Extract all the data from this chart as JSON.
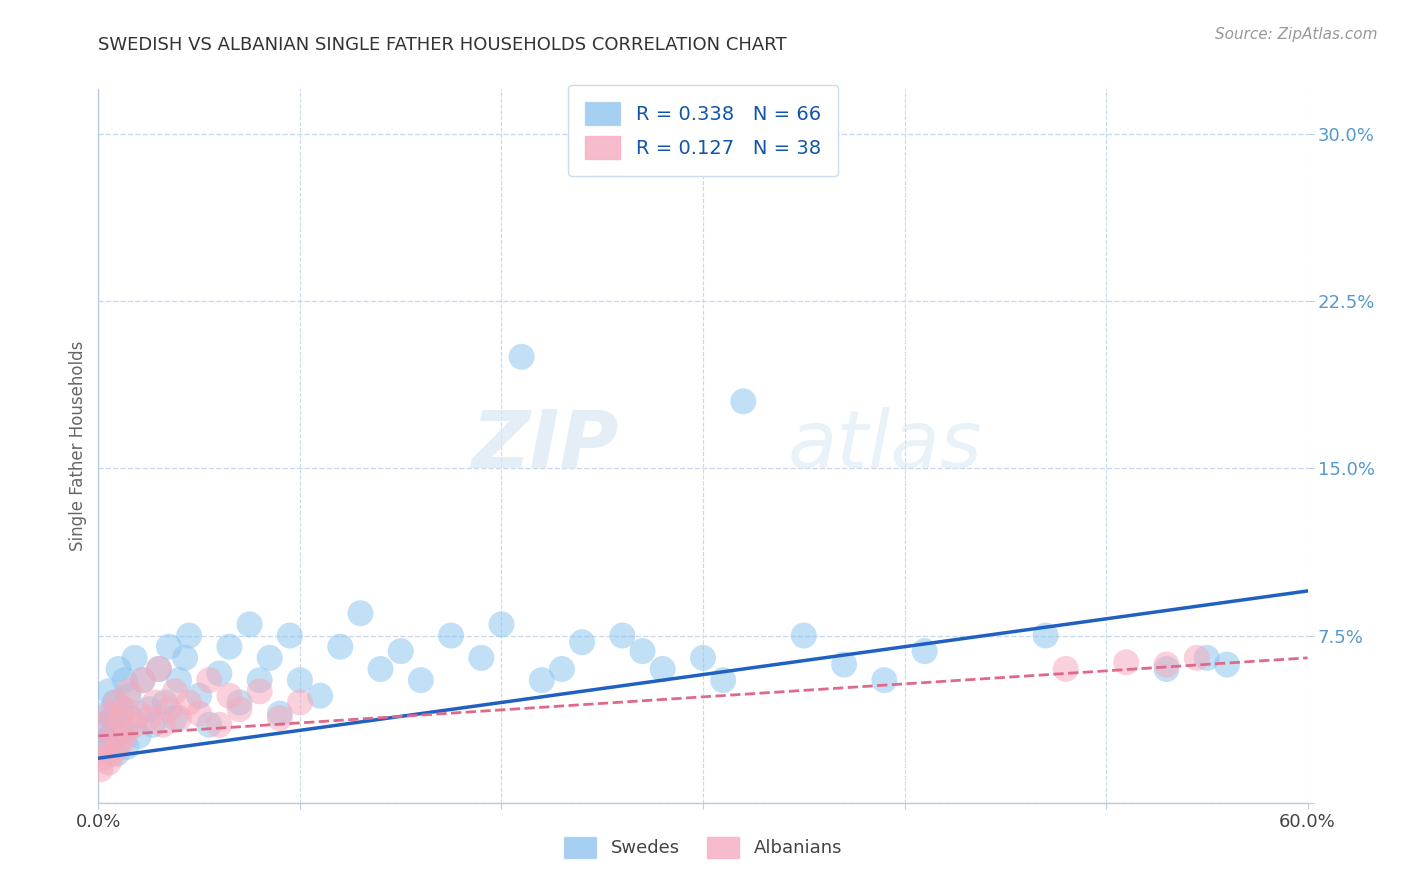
{
  "title": "SWEDISH VS ALBANIAN SINGLE FATHER HOUSEHOLDS CORRELATION CHART",
  "source": "Source: ZipAtlas.com",
  "ylabel": "Single Father Households",
  "xlim": [
    0.0,
    0.6
  ],
  "ylim": [
    0.0,
    0.32
  ],
  "xticks": [
    0.0,
    0.1,
    0.2,
    0.3,
    0.4,
    0.5,
    0.6
  ],
  "xticklabels": [
    "0.0%",
    "",
    "",
    "",
    "",
    "",
    "60.0%"
  ],
  "yticks": [
    0.0,
    0.075,
    0.15,
    0.225,
    0.3
  ],
  "yticklabels": [
    "",
    "7.5%",
    "15.0%",
    "22.5%",
    "30.0%"
  ],
  "swedish_R": 0.338,
  "swedish_N": 66,
  "albanian_R": 0.127,
  "albanian_N": 38,
  "swedish_color": "#8FC5EE",
  "albanian_color": "#F5ABBE",
  "swedish_line_color": "#2060C0",
  "albanian_line_color": "#E06888",
  "grid_color": "#C8D8EE",
  "background_color": "#FFFFFF",
  "watermark_zip": "ZIP",
  "watermark_atlas": "atlas",
  "legend_label_swedish": "Swedes",
  "legend_label_albanian": "Albanians",
  "sw_x": [
    0.002,
    0.003,
    0.004,
    0.005,
    0.005,
    0.006,
    0.007,
    0.008,
    0.009,
    0.01,
    0.011,
    0.012,
    0.013,
    0.014,
    0.015,
    0.016,
    0.018,
    0.02,
    0.022,
    0.025,
    0.027,
    0.03,
    0.033,
    0.035,
    0.038,
    0.04,
    0.043,
    0.045,
    0.05,
    0.055,
    0.06,
    0.065,
    0.07,
    0.075,
    0.08,
    0.085,
    0.09,
    0.095,
    0.1,
    0.11,
    0.12,
    0.13,
    0.14,
    0.15,
    0.16,
    0.175,
    0.19,
    0.2,
    0.21,
    0.22,
    0.23,
    0.24,
    0.26,
    0.27,
    0.28,
    0.3,
    0.31,
    0.32,
    0.35,
    0.37,
    0.39,
    0.41,
    0.47,
    0.53,
    0.55,
    0.56
  ],
  "sw_y": [
    0.035,
    0.028,
    0.04,
    0.025,
    0.05,
    0.03,
    0.038,
    0.045,
    0.022,
    0.06,
    0.032,
    0.042,
    0.055,
    0.025,
    0.048,
    0.038,
    0.065,
    0.03,
    0.055,
    0.042,
    0.035,
    0.06,
    0.045,
    0.07,
    0.038,
    0.055,
    0.065,
    0.075,
    0.048,
    0.035,
    0.058,
    0.07,
    0.045,
    0.08,
    0.055,
    0.065,
    0.04,
    0.075,
    0.055,
    0.048,
    0.07,
    0.085,
    0.06,
    0.068,
    0.055,
    0.075,
    0.065,
    0.08,
    0.2,
    0.055,
    0.06,
    0.072,
    0.075,
    0.068,
    0.06,
    0.065,
    0.055,
    0.18,
    0.075,
    0.062,
    0.055,
    0.068,
    0.075,
    0.06,
    0.065,
    0.062
  ],
  "al_x": [
    0.001,
    0.002,
    0.003,
    0.004,
    0.005,
    0.006,
    0.007,
    0.008,
    0.009,
    0.01,
    0.011,
    0.012,
    0.013,
    0.014,
    0.015,
    0.018,
    0.02,
    0.022,
    0.025,
    0.028,
    0.03,
    0.032,
    0.035,
    0.038,
    0.04,
    0.045,
    0.05,
    0.055,
    0.06,
    0.065,
    0.07,
    0.08,
    0.09,
    0.1,
    0.48,
    0.51,
    0.53,
    0.545
  ],
  "al_y": [
    0.015,
    0.025,
    0.02,
    0.035,
    0.018,
    0.04,
    0.022,
    0.03,
    0.045,
    0.025,
    0.038,
    0.028,
    0.042,
    0.032,
    0.05,
    0.035,
    0.04,
    0.055,
    0.038,
    0.045,
    0.06,
    0.035,
    0.042,
    0.05,
    0.038,
    0.045,
    0.04,
    0.055,
    0.035,
    0.048,
    0.042,
    0.05,
    0.038,
    0.045,
    0.06,
    0.063,
    0.062,
    0.065
  ],
  "sw_line_x": [
    0.0,
    0.6
  ],
  "sw_line_y": [
    0.02,
    0.095
  ],
  "al_line_x": [
    0.0,
    0.6
  ],
  "al_line_y": [
    0.03,
    0.065
  ]
}
